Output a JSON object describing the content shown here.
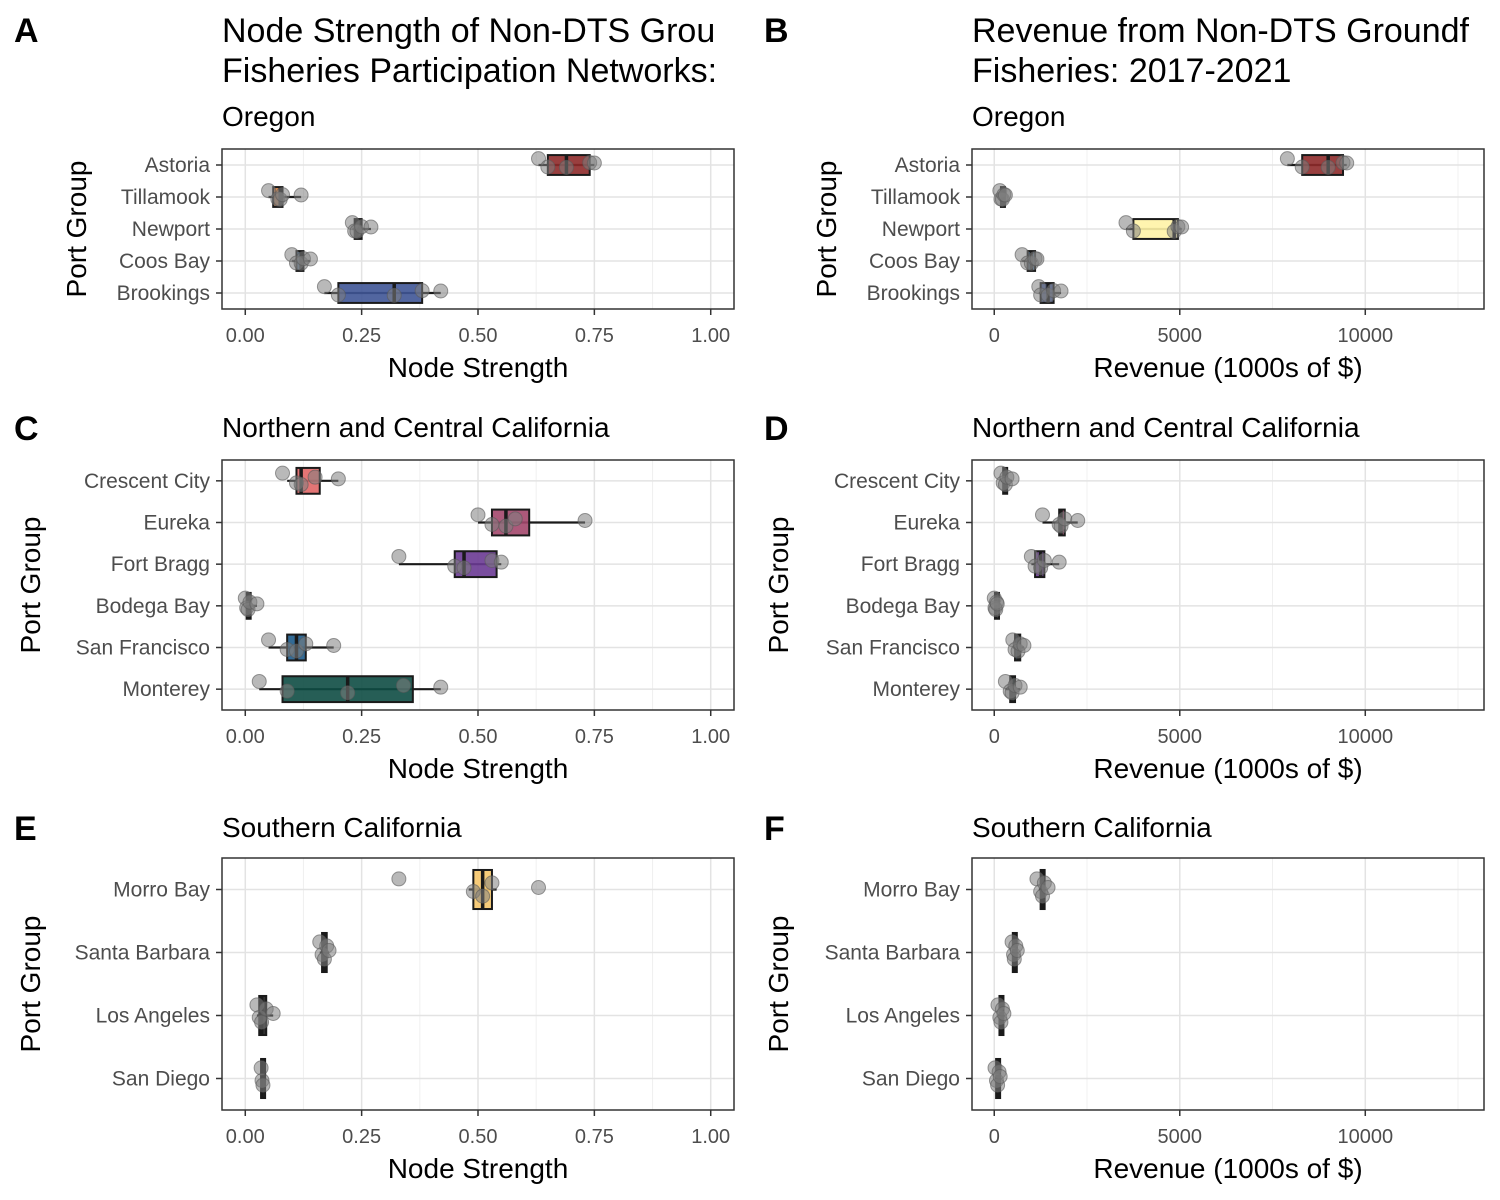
{
  "colors": {
    "astoria": "#8E2A2A",
    "tillamook": "#D9803E",
    "newport_node": "#1F1F1F",
    "newport_rev": "#FFF3A6",
    "coos_bay": "#4A7FB0",
    "brookings": "#3F5596",
    "crescent_city": "#E06666",
    "eureka": "#A3476B",
    "fort_bragg": "#6A3A93",
    "bodega_bay": "#333333",
    "san_francisco": "#1C5A8A",
    "monterey": "#0E4C44",
    "morro_bay": "#F6C66A",
    "dark": "#1A1A1A",
    "point": "#7F7F7F"
  },
  "chart_data": [
    {
      "panel": "A",
      "type": "box",
      "title": "Node Strength of Non-DTS Grou",
      "title2": "Fisheries Participation Networks:",
      "subtitle": "Oregon",
      "xlabel": "Node Strength",
      "ylabel": "Port Group",
      "xlim": [
        -0.05,
        1.05
      ],
      "xticks": [
        0,
        0.25,
        0.5,
        0.75,
        1
      ],
      "xtick_labels": [
        "0.00",
        "0.25",
        "0.50",
        "0.75",
        "1.00"
      ],
      "grid": true,
      "categories": [
        "Astoria",
        "Tillamook",
        "Newport",
        "Coos Bay",
        "Brookings"
      ],
      "boxes": [
        {
          "q1": 0.65,
          "median": 0.69,
          "q3": 0.74,
          "wmin": 0.63,
          "wmax": 0.75,
          "color": "#8E2A2A",
          "points": [
            0.63,
            0.65,
            0.69,
            0.74,
            0.75
          ]
        },
        {
          "q1": 0.06,
          "median": 0.075,
          "q3": 0.08,
          "wmin": 0.05,
          "wmax": 0.12,
          "color": "#D9803E",
          "points": [
            0.05,
            0.07,
            0.075,
            0.08,
            0.12
          ]
        },
        {
          "q1": 0.235,
          "median": 0.24,
          "q3": 0.25,
          "wmin": 0.23,
          "wmax": 0.27,
          "color": "#1F1F1F",
          "points": [
            0.23,
            0.235,
            0.24,
            0.25,
            0.27
          ]
        },
        {
          "q1": 0.11,
          "median": 0.12,
          "q3": 0.125,
          "wmin": 0.1,
          "wmax": 0.14,
          "color": "#4A7FB0",
          "points": [
            0.1,
            0.11,
            0.12,
            0.125,
            0.14
          ]
        },
        {
          "q1": 0.2,
          "median": 0.32,
          "q3": 0.38,
          "wmin": 0.17,
          "wmax": 0.42,
          "color": "#3F5596",
          "points": [
            0.17,
            0.2,
            0.32,
            0.38,
            0.42
          ]
        }
      ]
    },
    {
      "panel": "B",
      "type": "box",
      "title": "Revenue from Non-DTS Groundf",
      "title2": "Fisheries: 2017-2021",
      "subtitle": "Oregon",
      "xlabel": "Revenue (1000s of $)",
      "ylabel": "Port Group",
      "xlim": [
        -600,
        13200
      ],
      "xticks": [
        0,
        5000,
        10000
      ],
      "xtick_labels": [
        "0",
        "5000",
        "10000"
      ],
      "grid": true,
      "categories": [
        "Astoria",
        "Tillamook",
        "Newport",
        "Coos Bay",
        "Brookings"
      ],
      "boxes": [
        {
          "q1": 8300,
          "median": 9000,
          "q3": 9400,
          "wmin": 7900,
          "wmax": 9500,
          "color": "#8E2A2A",
          "points": [
            7900,
            8300,
            9000,
            9400,
            9500
          ]
        },
        {
          "q1": 180,
          "median": 220,
          "q3": 260,
          "wmin": 150,
          "wmax": 300,
          "color": "#D9803E",
          "points": [
            150,
            180,
            220,
            260,
            300
          ]
        },
        {
          "q1": 3750,
          "median": 4850,
          "q3": 4950,
          "wmin": 3550,
          "wmax": 5050,
          "color": "#FFF3A6",
          "points": [
            3550,
            3750,
            4850,
            4950,
            5050
          ]
        },
        {
          "q1": 900,
          "median": 1000,
          "q3": 1100,
          "wmin": 750,
          "wmax": 1150,
          "color": "#4A7FB0",
          "points": [
            750,
            900,
            1000,
            1100,
            1150
          ]
        },
        {
          "q1": 1250,
          "median": 1450,
          "q3": 1600,
          "wmin": 1200,
          "wmax": 1800,
          "color": "#3F5596",
          "points": [
            1200,
            1250,
            1450,
            1600,
            1800
          ]
        }
      ]
    },
    {
      "panel": "C",
      "type": "box",
      "title": "",
      "title2": "",
      "subtitle": "Northern and Central California",
      "xlabel": "Node Strength",
      "ylabel": "Port Group",
      "xlim": [
        -0.05,
        1.05
      ],
      "xticks": [
        0,
        0.25,
        0.5,
        0.75,
        1
      ],
      "xtick_labels": [
        "0.00",
        "0.25",
        "0.50",
        "0.75",
        "1.00"
      ],
      "grid": true,
      "categories": [
        "Crescent City",
        "Eureka",
        "Fort Bragg",
        "Bodega Bay",
        "San Francisco",
        "Monterey"
      ],
      "boxes": [
        {
          "q1": 0.11,
          "median": 0.12,
          "q3": 0.16,
          "wmin": 0.09,
          "wmax": 0.2,
          "color": "#E06666",
          "points": [
            0.08,
            0.11,
            0.12,
            0.15,
            0.2
          ]
        },
        {
          "q1": 0.53,
          "median": 0.56,
          "q3": 0.61,
          "wmin": 0.5,
          "wmax": 0.73,
          "color": "#A3476B",
          "points": [
            0.5,
            0.53,
            0.56,
            0.58,
            0.73
          ]
        },
        {
          "q1": 0.45,
          "median": 0.47,
          "q3": 0.54,
          "wmin": 0.33,
          "wmax": 0.55,
          "color": "#6A3A93",
          "points": [
            0.33,
            0.45,
            0.47,
            0.53,
            0.55
          ]
        },
        {
          "q1": 0.003,
          "median": 0.006,
          "q3": 0.01,
          "wmin": 0,
          "wmax": 0.025,
          "color": "#333333",
          "points": [
            0,
            0.003,
            0.006,
            0.01,
            0.025
          ]
        },
        {
          "q1": 0.09,
          "median": 0.11,
          "q3": 0.13,
          "wmin": 0.05,
          "wmax": 0.19,
          "color": "#1C5A8A",
          "points": [
            0.05,
            0.09,
            0.11,
            0.13,
            0.19
          ]
        },
        {
          "q1": 0.08,
          "median": 0.22,
          "q3": 0.36,
          "wmin": 0.03,
          "wmax": 0.42,
          "color": "#0E4C44",
          "points": [
            0.03,
            0.09,
            0.22,
            0.34,
            0.42
          ]
        }
      ]
    },
    {
      "panel": "D",
      "type": "box",
      "title": "",
      "title2": "",
      "subtitle": "Northern and Central California",
      "xlabel": "Revenue (1000s of $)",
      "ylabel": "Port Group",
      "xlim": [
        -600,
        13200
      ],
      "xticks": [
        0,
        5000,
        10000
      ],
      "xtick_labels": [
        "0",
        "5000",
        "10000"
      ],
      "grid": true,
      "categories": [
        "Crescent City",
        "Eureka",
        "Fort Bragg",
        "Bodega Bay",
        "San Francisco",
        "Monterey"
      ],
      "boxes": [
        {
          "q1": 240,
          "median": 300,
          "q3": 340,
          "wmin": 180,
          "wmax": 480,
          "color": "#E06666",
          "points": [
            180,
            240,
            300,
            340,
            480
          ]
        },
        {
          "q1": 1750,
          "median": 1800,
          "q3": 1900,
          "wmin": 1300,
          "wmax": 2250,
          "color": "#A3476B",
          "points": [
            1300,
            1750,
            1800,
            1900,
            2250
          ]
        },
        {
          "q1": 1100,
          "median": 1250,
          "q3": 1350,
          "wmin": 1000,
          "wmax": 1750,
          "color": "#6A3A93",
          "points": [
            1000,
            1100,
            1250,
            1350,
            1750
          ]
        },
        {
          "q1": 20,
          "median": 40,
          "q3": 60,
          "wmin": 0,
          "wmax": 80,
          "color": "#333333",
          "points": [
            0,
            20,
            40,
            60,
            80
          ]
        },
        {
          "q1": 560,
          "median": 640,
          "q3": 700,
          "wmin": 500,
          "wmax": 800,
          "color": "#1C5A8A",
          "points": [
            500,
            560,
            640,
            700,
            800
          ]
        },
        {
          "q1": 430,
          "median": 480,
          "q3": 560,
          "wmin": 300,
          "wmax": 700,
          "color": "#0E4C44",
          "points": [
            300,
            430,
            480,
            560,
            700
          ]
        }
      ]
    },
    {
      "panel": "E",
      "type": "box",
      "title": "",
      "title2": "",
      "subtitle": "Southern California",
      "xlabel": "Node Strength",
      "ylabel": "Port Group",
      "xlim": [
        -0.05,
        1.05
      ],
      "xticks": [
        0,
        0.25,
        0.5,
        0.75,
        1
      ],
      "xtick_labels": [
        "0.00",
        "0.25",
        "0.50",
        "0.75",
        "1.00"
      ],
      "grid": true,
      "categories": [
        "Morro Bay",
        "Santa Barbara",
        "Los Angeles",
        "San Diego"
      ],
      "boxes": [
        {
          "q1": 0.49,
          "median": 0.51,
          "q3": 0.53,
          "wmin": 0.48,
          "wmax": 0.54,
          "color": "#F6C66A",
          "points": [
            0.33,
            0.49,
            0.51,
            0.53,
            0.63
          ]
        },
        {
          "q1": 0.165,
          "median": 0.17,
          "q3": 0.175,
          "wmin": 0.16,
          "wmax": 0.18,
          "color": "#1A1A1A",
          "points": [
            0.16,
            0.165,
            0.17,
            0.175,
            0.18
          ]
        },
        {
          "q1": 0.03,
          "median": 0.035,
          "q3": 0.045,
          "wmin": 0.025,
          "wmax": 0.06,
          "color": "#1A1A1A",
          "points": [
            0.025,
            0.03,
            0.035,
            0.045,
            0.06
          ]
        },
        {
          "q1": 0.034,
          "median": 0.036,
          "q3": 0.038,
          "wmin": 0.033,
          "wmax": 0.04,
          "color": "#1A1A1A",
          "points": [
            0.034,
            0.036,
            0.038
          ]
        }
      ]
    },
    {
      "panel": "F",
      "type": "box",
      "title": "",
      "title2": "",
      "subtitle": "Southern California",
      "xlabel": "Revenue (1000s of $)",
      "ylabel": "Port Group",
      "xlim": [
        -600,
        13200
      ],
      "xticks": [
        0,
        5000,
        10000
      ],
      "xtick_labels": [
        "0",
        "5000",
        "10000"
      ],
      "grid": true,
      "categories": [
        "Morro Bay",
        "Santa Barbara",
        "Los Angeles",
        "San Diego"
      ],
      "boxes": [
        {
          "q1": 1250,
          "median": 1300,
          "q3": 1350,
          "wmin": 1200,
          "wmax": 1400,
          "color": "#1A1A1A",
          "points": [
            1150,
            1250,
            1300,
            1350,
            1450
          ]
        },
        {
          "q1": 500,
          "median": 540,
          "q3": 580,
          "wmin": 480,
          "wmax": 620,
          "color": "#1A1A1A",
          "points": [
            480,
            520,
            540,
            580,
            620
          ]
        },
        {
          "q1": 140,
          "median": 180,
          "q3": 220,
          "wmin": 100,
          "wmax": 260,
          "color": "#1A1A1A",
          "points": [
            100,
            150,
            180,
            220,
            260
          ]
        },
        {
          "q1": 50,
          "median": 90,
          "q3": 130,
          "wmin": 20,
          "wmax": 160,
          "color": "#1A1A1A",
          "points": [
            20,
            60,
            90,
            130,
            160
          ]
        }
      ]
    }
  ]
}
